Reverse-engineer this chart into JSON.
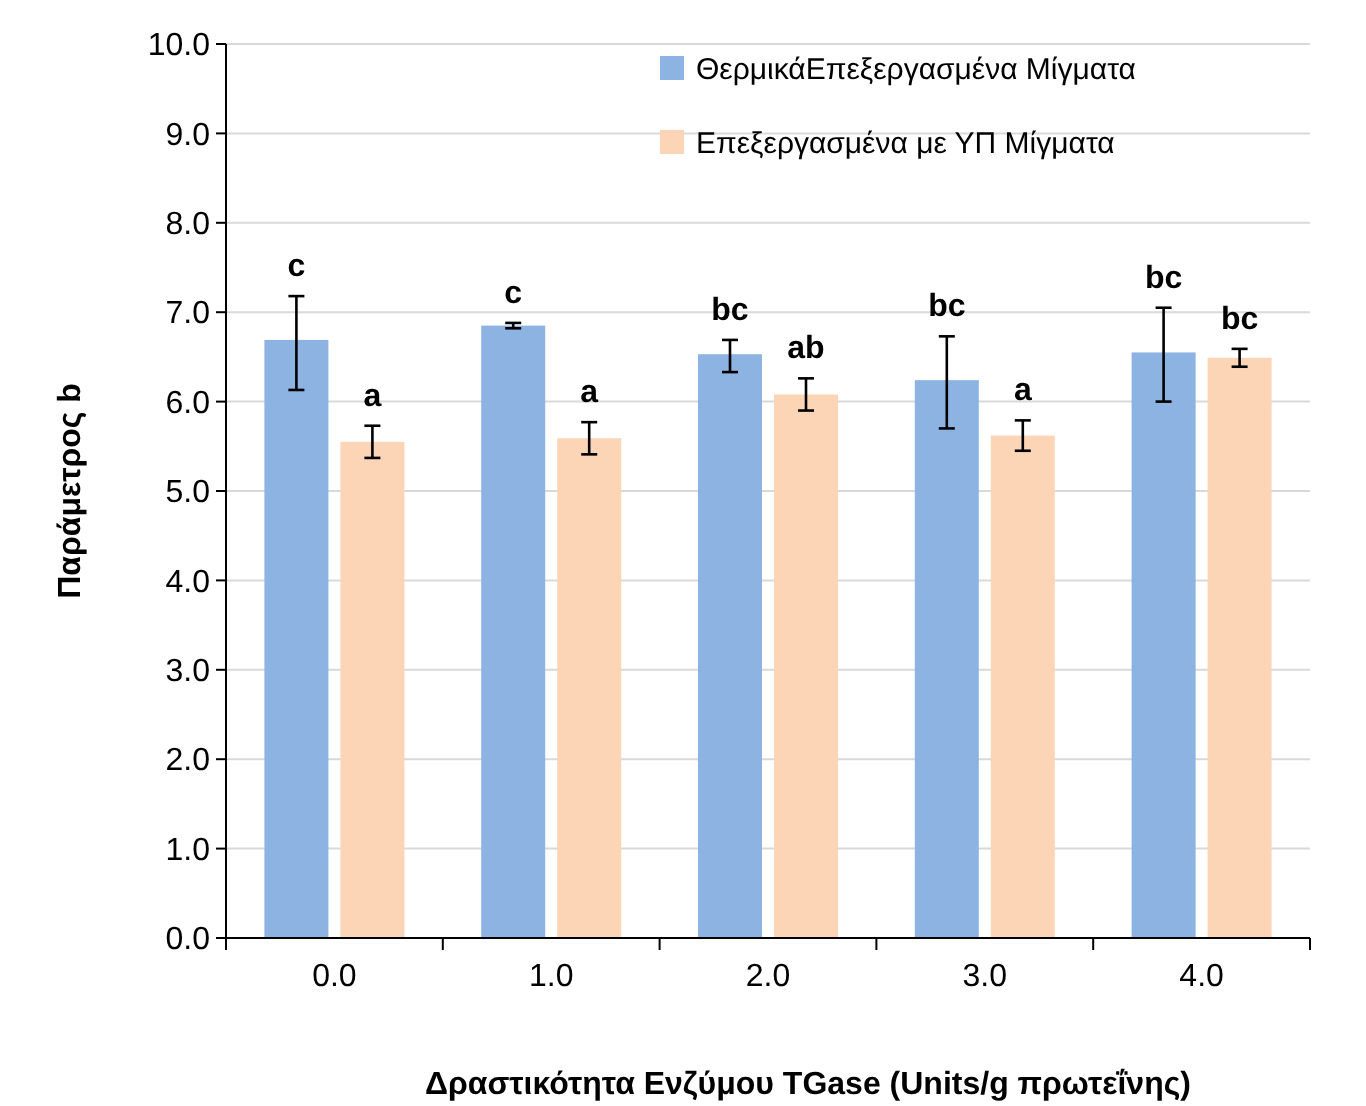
{
  "chart_data": {
    "type": "bar",
    "xlabel": "Δραστικότητα Ενζύμου TGase (Units/g πρωτεΐνης)",
    "ylabel": "Παράμετρος b",
    "categories": [
      "0.0",
      "1.0",
      "2.0",
      "3.0",
      "4.0"
    ],
    "series": [
      {
        "name": "ΘερμικάΕπεξεργασμένα Μίγματα",
        "color": "#8db3e2",
        "values": [
          6.69,
          6.85,
          6.53,
          6.24,
          6.55
        ],
        "errors": [
          [
            6.13,
            7.18
          ],
          [
            6.82,
            6.88
          ],
          [
            6.33,
            6.69
          ],
          [
            5.7,
            6.73
          ],
          [
            6.0,
            7.05
          ]
        ],
        "value_labels": [
          "c",
          "c",
          "bc",
          "bc",
          "bc"
        ]
      },
      {
        "name": "Επεξεργασμένα με ΥΠ Μίγματα",
        "color": "#fbd5b5",
        "values": [
          5.55,
          5.59,
          6.08,
          5.62,
          6.49
        ],
        "errors": [
          [
            5.37,
            5.73
          ],
          [
            5.41,
            5.77
          ],
          [
            5.9,
            6.26
          ],
          [
            5.45,
            5.79
          ],
          [
            6.39,
            6.59
          ]
        ],
        "value_labels": [
          "a",
          "a",
          "ab",
          "a",
          "bc"
        ]
      }
    ],
    "ylim": [
      0,
      10
    ],
    "yticks": [
      {
        "value": 0,
        "label": "0.0"
      },
      {
        "value": 1,
        "label": "1.0"
      },
      {
        "value": 2,
        "label": "2.0"
      },
      {
        "value": 3,
        "label": "3.0"
      },
      {
        "value": 4,
        "label": "4.0"
      },
      {
        "value": 5,
        "label": "5.0"
      },
      {
        "value": 6,
        "label": "6.0"
      },
      {
        "value": 7,
        "label": "7.0"
      },
      {
        "value": 8,
        "label": "8.0"
      },
      {
        "value": 9,
        "label": "9.0"
      },
      {
        "value": 10,
        "label": "10.0"
      }
    ],
    "grid": "y",
    "legend": "top right"
  }
}
